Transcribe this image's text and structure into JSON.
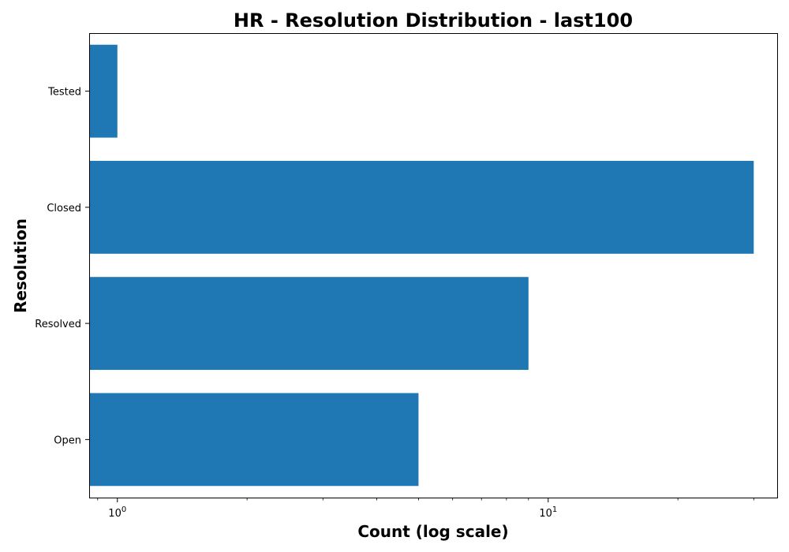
{
  "chart_data": {
    "type": "bar",
    "orientation": "horizontal",
    "title": "HR - Resolution Distribution - last100",
    "xlabel": "Count (log scale)",
    "ylabel": "Resolution",
    "x_scale": "log",
    "xlim": [
      0.86,
      34
    ],
    "categories": [
      "Open",
      "Resolved",
      "Closed",
      "Tested"
    ],
    "values": [
      5,
      9,
      30,
      1
    ],
    "x_tick_labels": [
      {
        "base": "10",
        "exponent": "0",
        "value": 1
      },
      {
        "base": "10",
        "exponent": "1",
        "value": 10
      }
    ],
    "bar_color": "#1f77b4",
    "grid": false,
    "legend": "none"
  }
}
